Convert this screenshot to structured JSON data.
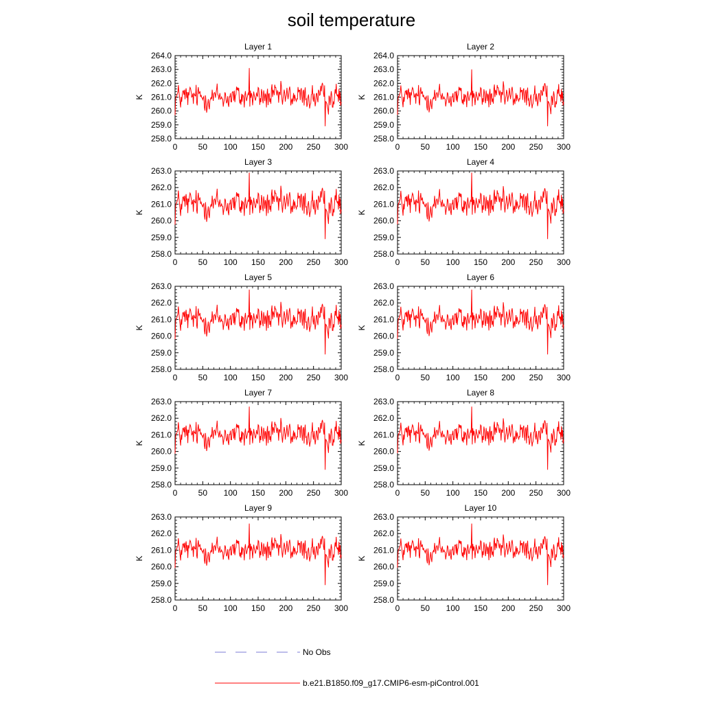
{
  "title": "soil temperature",
  "legend": {
    "placement": "bottom",
    "entries": [
      {
        "label": "No Obs",
        "color": "#7b7bd6",
        "style": "dashed"
      },
      {
        "label": "b.e21.B1850.f09_g17.CMIP6-esm-piControl.001",
        "color": "#ff0000",
        "style": "solid"
      }
    ]
  },
  "chart_data": {
    "type": "line",
    "layout": "5 rows x 2 columns",
    "ylabel": "K",
    "xlim": [
      0,
      300
    ],
    "xticks": [
      "0",
      "50",
      "100",
      "150",
      "200",
      "250",
      "300"
    ],
    "series_color": "#ff0000",
    "panels": [
      {
        "title": "Layer 1",
        "ylim": [
          258,
          264
        ],
        "yticks": [
          "258.0",
          "259.0",
          "260.0",
          "261.0",
          "262.0",
          "263.0",
          "264.0"
        ],
        "mean": 261.0,
        "amp": 1.0,
        "peak": 263.1,
        "trough": 258.9
      },
      {
        "title": "Layer 2",
        "ylim": [
          258,
          264
        ],
        "yticks": [
          "258.0",
          "259.0",
          "260.0",
          "261.0",
          "262.0",
          "263.0",
          "264.0"
        ],
        "mean": 261.0,
        "amp": 0.98,
        "peak": 263.0,
        "trough": 258.9
      },
      {
        "title": "Layer 3",
        "ylim": [
          258,
          263
        ],
        "yticks": [
          "258.0",
          "259.0",
          "260.0",
          "261.0",
          "262.0",
          "263.0"
        ],
        "mean": 261.0,
        "amp": 0.95,
        "peak": 262.9,
        "trough": 258.9
      },
      {
        "title": "Layer 4",
        "ylim": [
          258,
          263
        ],
        "yticks": [
          "258.0",
          "259.0",
          "260.0",
          "261.0",
          "262.0",
          "263.0"
        ],
        "mean": 261.0,
        "amp": 0.93,
        "peak": 262.9,
        "trough": 258.9
      },
      {
        "title": "Layer 5",
        "ylim": [
          258,
          263
        ],
        "yticks": [
          "258.0",
          "259.0",
          "260.0",
          "261.0",
          "262.0",
          "263.0"
        ],
        "mean": 261.0,
        "amp": 0.91,
        "peak": 262.8,
        "trough": 258.9
      },
      {
        "title": "Layer 6",
        "ylim": [
          258,
          263
        ],
        "yticks": [
          "258.0",
          "259.0",
          "260.0",
          "261.0",
          "262.0",
          "263.0"
        ],
        "mean": 261.0,
        "amp": 0.89,
        "peak": 262.8,
        "trough": 258.9
      },
      {
        "title": "Layer 7",
        "ylim": [
          258,
          263
        ],
        "yticks": [
          "258.0",
          "259.0",
          "260.0",
          "261.0",
          "262.0",
          "263.0"
        ],
        "mean": 261.0,
        "amp": 0.87,
        "peak": 262.7,
        "trough": 258.9
      },
      {
        "title": "Layer 8",
        "ylim": [
          258,
          263
        ],
        "yticks": [
          "258.0",
          "259.0",
          "260.0",
          "261.0",
          "262.0",
          "263.0"
        ],
        "mean": 261.0,
        "amp": 0.85,
        "peak": 262.7,
        "trough": 258.9
      },
      {
        "title": "Layer 9",
        "ylim": [
          258,
          263
        ],
        "yticks": [
          "258.0",
          "259.0",
          "260.0",
          "261.0",
          "262.0",
          "263.0"
        ],
        "mean": 261.0,
        "amp": 0.83,
        "peak": 262.6,
        "trough": 258.9
      },
      {
        "title": "Layer 10",
        "ylim": [
          258,
          263
        ],
        "yticks": [
          "258.0",
          "259.0",
          "260.0",
          "261.0",
          "262.0",
          "263.0"
        ],
        "mean": 261.0,
        "amp": 0.81,
        "peak": 262.6,
        "trough": 258.9
      }
    ]
  }
}
